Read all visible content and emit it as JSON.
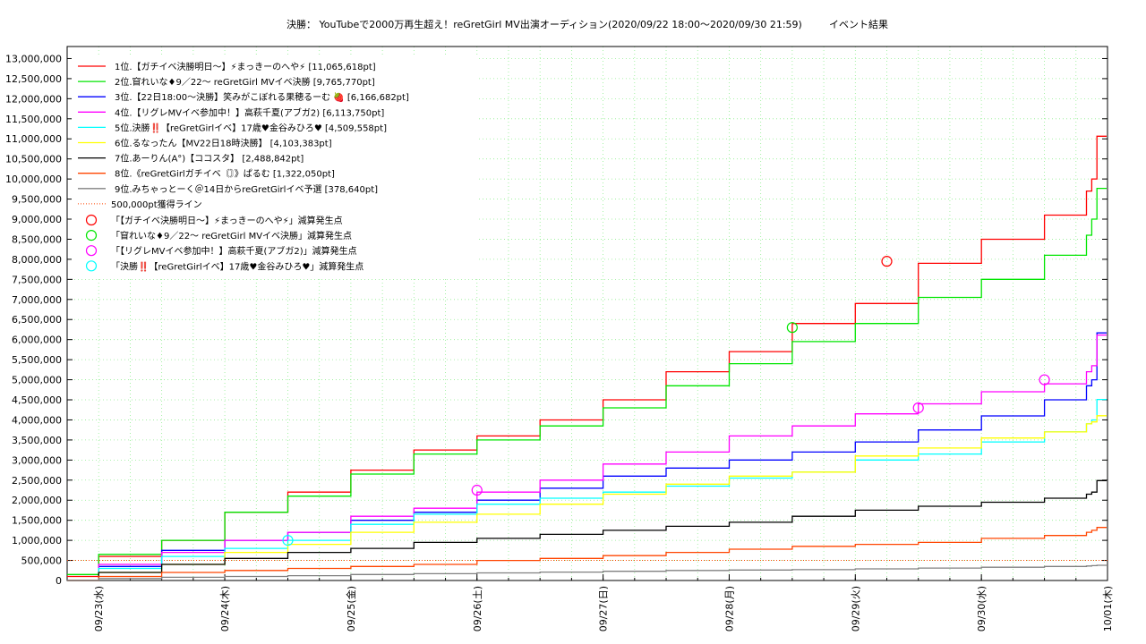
{
  "chart_data": {
    "type": "line",
    "title": "決勝： YouTubeで2000万再生超え！reGretGirl MV出演オーディション(2020/09/22 18:00〜2020/09/30 21:59)",
    "title_suffix": "イベント結果",
    "x_axis": {
      "type": "date",
      "range": [
        "2020-09-22T18:00",
        "2020-10-01T00:00"
      ],
      "tick_labels": [
        "09/23(水)",
        "09/24(木)",
        "09/25(金)",
        "09/26(土)",
        "09/27(日)",
        "09/28(月)",
        "09/29(火)",
        "09/30(水)",
        "10/01(木)"
      ],
      "tick_dates": [
        "2020-09-23",
        "2020-09-24",
        "2020-09-25",
        "2020-09-26",
        "2020-09-27",
        "2020-09-28",
        "2020-09-29",
        "2020-09-30",
        "2020-10-01"
      ]
    },
    "y_axis": {
      "min": 0,
      "max": 13300000,
      "tick_labels": [
        "0",
        "500,000",
        "1,000,000",
        "1,500,000",
        "2,000,000",
        "2,500,000",
        "3,000,000",
        "3,500,000",
        "4,000,000",
        "4,500,000",
        "5,000,000",
        "5,500,000",
        "6,000,000",
        "6,500,000",
        "7,000,000",
        "7,500,000",
        "8,000,000",
        "8,500,000",
        "9,000,000",
        "9,500,000",
        "10,000,000",
        "10,500,000",
        "11,000,000",
        "11,500,000",
        "12,000,000",
        "12,500,000",
        "13,000,000"
      ]
    },
    "grid": true,
    "legend_position": "top-left",
    "series": [
      {
        "name": "1位.【ガチイベ決勝明日〜】⚡まっきーのへや⚡ [11,065,618pt]",
        "color": "#ff0000",
        "x": [
          "2020-09-22T18:00",
          "2020-09-23T00:00",
          "2020-09-23T12:00",
          "2020-09-24T00:00",
          "2020-09-24T12:00",
          "2020-09-25T00:00",
          "2020-09-25T12:00",
          "2020-09-26T00:00",
          "2020-09-26T12:00",
          "2020-09-27T00:00",
          "2020-09-27T12:00",
          "2020-09-28T00:00",
          "2020-09-28T12:00",
          "2020-09-29T00:00",
          "2020-09-29T12:00",
          "2020-09-30T00:00",
          "2020-09-30T12:00",
          "2020-09-30T20:00",
          "2020-09-30T21:00",
          "2020-09-30T21:59"
        ],
        "y": [
          100000,
          600000,
          1000000,
          1700000,
          2200000,
          2750000,
          3250000,
          3600000,
          4000000,
          4500000,
          5200000,
          5700000,
          6400000,
          6900000,
          7900000,
          8500000,
          9100000,
          9700000,
          10000000,
          11065618
        ]
      },
      {
        "name": "2位.窅れいな♦9／22〜 reGretGirl MVイベ決勝 [9,765,770pt]",
        "color": "#00e600",
        "x": [
          "2020-09-22T18:00",
          "2020-09-23T00:00",
          "2020-09-23T12:00",
          "2020-09-24T00:00",
          "2020-09-24T12:00",
          "2020-09-25T00:00",
          "2020-09-25T12:00",
          "2020-09-26T00:00",
          "2020-09-26T12:00",
          "2020-09-27T00:00",
          "2020-09-27T12:00",
          "2020-09-28T00:00",
          "2020-09-28T12:00",
          "2020-09-29T00:00",
          "2020-09-29T12:00",
          "2020-09-30T00:00",
          "2020-09-30T12:00",
          "2020-09-30T20:00",
          "2020-09-30T21:00",
          "2020-09-30T21:59"
        ],
        "y": [
          150000,
          650000,
          1000000,
          1700000,
          2100000,
          2650000,
          3150000,
          3500000,
          3850000,
          4300000,
          4850000,
          5400000,
          5950000,
          6400000,
          7050000,
          7500000,
          8100000,
          8600000,
          9000000,
          9765770
        ]
      },
      {
        "name": "3位.【22日18:00〜決勝】笑みがこぼれる果穂るーむ 🍓 [6,166,682pt]",
        "color": "#0000ff",
        "x": [
          "2020-09-22T18:00",
          "2020-09-23T00:00",
          "2020-09-23T12:00",
          "2020-09-24T00:00",
          "2020-09-24T12:00",
          "2020-09-25T00:00",
          "2020-09-25T12:00",
          "2020-09-26T00:00",
          "2020-09-26T12:00",
          "2020-09-27T00:00",
          "2020-09-27T12:00",
          "2020-09-28T00:00",
          "2020-09-28T12:00",
          "2020-09-29T00:00",
          "2020-09-29T12:00",
          "2020-09-30T00:00",
          "2020-09-30T12:00",
          "2020-09-30T20:00",
          "2020-09-30T21:00",
          "2020-09-30T21:59"
        ],
        "y": [
          0,
          350000,
          750000,
          1000000,
          1200000,
          1500000,
          1700000,
          2000000,
          2300000,
          2600000,
          2800000,
          3000000,
          3200000,
          3450000,
          3750000,
          4100000,
          4500000,
          4850000,
          5000000,
          6166682
        ]
      },
      {
        "name": "4位.【リグレMVイベ参加中！】高萩千夏(アブガ2) [6,113,750pt]",
        "color": "#ff00ff",
        "x": [
          "2020-09-22T18:00",
          "2020-09-23T00:00",
          "2020-09-23T12:00",
          "2020-09-24T00:00",
          "2020-09-24T12:00",
          "2020-09-25T00:00",
          "2020-09-25T12:00",
          "2020-09-26T00:00",
          "2020-09-26T12:00",
          "2020-09-27T00:00",
          "2020-09-27T12:00",
          "2020-09-28T00:00",
          "2020-09-28T12:00",
          "2020-09-29T00:00",
          "2020-09-29T12:00",
          "2020-09-30T00:00",
          "2020-09-30T12:00",
          "2020-09-30T20:00",
          "2020-09-30T21:00",
          "2020-09-30T21:59"
        ],
        "y": [
          0,
          400000,
          700000,
          1000000,
          1200000,
          1600000,
          1800000,
          2200000,
          2500000,
          2900000,
          3200000,
          3600000,
          3850000,
          4150000,
          4400000,
          4700000,
          4900000,
          5200000,
          5350000,
          6113750
        ]
      },
      {
        "name": "5位.決勝‼️【reGretGirlイベ】17歳♥金谷みひろ♥ [4,509,558pt]",
        "color": "#00ffff",
        "x": [
          "2020-09-22T18:00",
          "2020-09-23T00:00",
          "2020-09-23T12:00",
          "2020-09-24T00:00",
          "2020-09-24T12:00",
          "2020-09-25T00:00",
          "2020-09-25T12:00",
          "2020-09-26T00:00",
          "2020-09-26T12:00",
          "2020-09-27T00:00",
          "2020-09-27T12:00",
          "2020-09-28T00:00",
          "2020-09-28T12:00",
          "2020-09-29T00:00",
          "2020-09-29T12:00",
          "2020-09-30T00:00",
          "2020-09-30T12:00",
          "2020-09-30T20:00",
          "2020-09-30T21:00",
          "2020-09-30T21:59"
        ],
        "y": [
          0,
          300000,
          600000,
          800000,
          1000000,
          1400000,
          1650000,
          1900000,
          2050000,
          2200000,
          2350000,
          2550000,
          2700000,
          3000000,
          3150000,
          3450000,
          3700000,
          3900000,
          4000000,
          4509558
        ]
      },
      {
        "name": "6位.るなったん【MV22日18時決勝】 [4,103,383pt]",
        "color": "#ffff00",
        "x": [
          "2020-09-22T18:00",
          "2020-09-23T00:00",
          "2020-09-23T12:00",
          "2020-09-24T00:00",
          "2020-09-24T12:00",
          "2020-09-25T00:00",
          "2020-09-25T12:00",
          "2020-09-26T00:00",
          "2020-09-26T12:00",
          "2020-09-27T00:00",
          "2020-09-27T12:00",
          "2020-09-28T00:00",
          "2020-09-28T12:00",
          "2020-09-29T00:00",
          "2020-09-29T12:00",
          "2020-09-30T00:00",
          "2020-09-30T12:00",
          "2020-09-30T20:00",
          "2020-09-30T21:00",
          "2020-09-30T21:59"
        ],
        "y": [
          0,
          200000,
          400000,
          700000,
          900000,
          1200000,
          1450000,
          1650000,
          1900000,
          2150000,
          2400000,
          2600000,
          2700000,
          3100000,
          3300000,
          3550000,
          3700000,
          3900000,
          3950000,
          4103383
        ]
      },
      {
        "name": "7位.あーりん(A°)【ココスタ】 [2,488,842pt]",
        "color": "#000000",
        "x": [
          "2020-09-22T18:00",
          "2020-09-23T00:00",
          "2020-09-23T12:00",
          "2020-09-24T00:00",
          "2020-09-24T12:00",
          "2020-09-25T00:00",
          "2020-09-25T12:00",
          "2020-09-26T00:00",
          "2020-09-26T12:00",
          "2020-09-27T00:00",
          "2020-09-27T12:00",
          "2020-09-28T00:00",
          "2020-09-28T12:00",
          "2020-09-29T00:00",
          "2020-09-29T12:00",
          "2020-09-30T00:00",
          "2020-09-30T12:00",
          "2020-09-30T20:00",
          "2020-09-30T21:00",
          "2020-09-30T21:59"
        ],
        "y": [
          0,
          200000,
          400000,
          550000,
          700000,
          800000,
          950000,
          1050000,
          1150000,
          1250000,
          1350000,
          1450000,
          1600000,
          1750000,
          1850000,
          1950000,
          2050000,
          2150000,
          2200000,
          2488842
        ]
      },
      {
        "name": "8位.《reGretGirlガチイベ〘〙》ぱるむ [1,322,050pt]",
        "color": "#ff4500",
        "x": [
          "2020-09-22T18:00",
          "2020-09-23T00:00",
          "2020-09-23T12:00",
          "2020-09-24T00:00",
          "2020-09-24T12:00",
          "2020-09-25T00:00",
          "2020-09-25T12:00",
          "2020-09-26T00:00",
          "2020-09-26T12:00",
          "2020-09-27T00:00",
          "2020-09-27T12:00",
          "2020-09-28T00:00",
          "2020-09-28T12:00",
          "2020-09-29T00:00",
          "2020-09-29T12:00",
          "2020-09-30T00:00",
          "2020-09-30T12:00",
          "2020-09-30T20:00",
          "2020-09-30T21:00",
          "2020-09-30T21:59"
        ],
        "y": [
          0,
          100000,
          200000,
          250000,
          300000,
          350000,
          400000,
          500000,
          550000,
          620000,
          700000,
          780000,
          850000,
          900000,
          950000,
          1050000,
          1120000,
          1200000,
          1250000,
          1322050
        ]
      },
      {
        "name": "9位.みちゃっとーく＠14日からreGretGirlイベ予選 [378,640pt]",
        "color": "#808080",
        "x": [
          "2020-09-22T18:00",
          "2020-09-23T00:00",
          "2020-09-23T12:00",
          "2020-09-24T00:00",
          "2020-09-24T12:00",
          "2020-09-25T00:00",
          "2020-09-25T12:00",
          "2020-09-26T00:00",
          "2020-09-26T12:00",
          "2020-09-27T00:00",
          "2020-09-27T12:00",
          "2020-09-28T00:00",
          "2020-09-28T12:00",
          "2020-09-29T00:00",
          "2020-09-29T12:00",
          "2020-09-30T00:00",
          "2020-09-30T12:00",
          "2020-09-30T20:00",
          "2020-09-30T21:00",
          "2020-09-30T21:59"
        ],
        "y": [
          0,
          50000,
          80000,
          100000,
          120000,
          150000,
          170000,
          190000,
          210000,
          230000,
          250000,
          260000,
          270000,
          290000,
          310000,
          330000,
          350000,
          360000,
          370000,
          378640
        ]
      }
    ],
    "reference_line": {
      "name": "500,000pt獲得ライン",
      "value": 500000,
      "color": "#ff4500"
    },
    "markers": [
      {
        "name": "「【ガチイベ決勝明日〜】⚡まっきーのへや⚡」減算発生点",
        "color": "#ff0000",
        "points": [
          {
            "x": "2020-09-29T06:00",
            "y": 7950000
          }
        ]
      },
      {
        "name": "「窅れいな♦9／22〜 reGretGirl MVイベ決勝」減算発生点",
        "color": "#00e600",
        "points": [
          {
            "x": "2020-09-28T12:00",
            "y": 6300000
          }
        ]
      },
      {
        "name": "「【リグレMVイベ参加中！】高萩千夏(アブガ2)」減算発生点",
        "color": "#ff00ff",
        "points": [
          {
            "x": "2020-09-26T00:00",
            "y": 2250000
          },
          {
            "x": "2020-09-29T12:00",
            "y": 4300000
          },
          {
            "x": "2020-09-30T12:00",
            "y": 5000000
          }
        ]
      },
      {
        "name": "「決勝‼️【reGretGirlイベ】17歳♥金谷みひろ♥」減算発生点",
        "color": "#00ffff",
        "points": [
          {
            "x": "2020-09-24T12:00",
            "y": 1000000
          }
        ]
      }
    ]
  }
}
